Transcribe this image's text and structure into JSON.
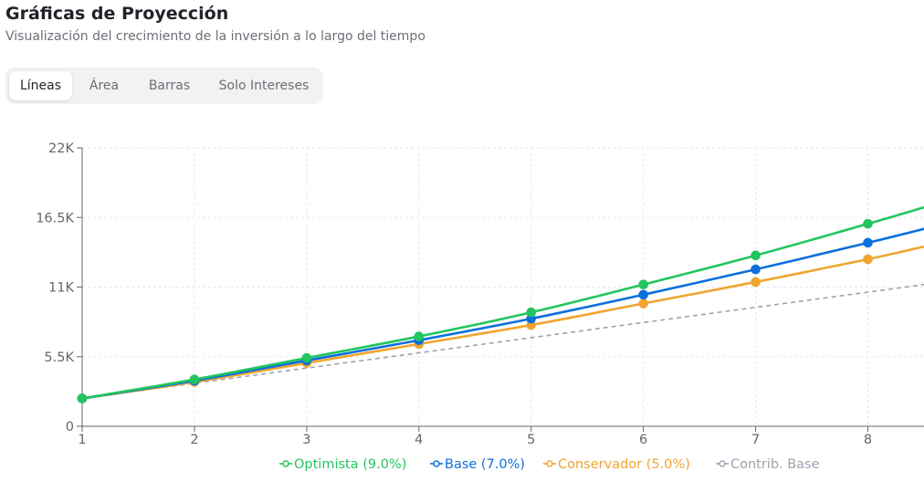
{
  "header": {
    "title": "Gráficas de Proyección",
    "subtitle": "Visualización del crecimiento de la inversión a lo largo del tiempo"
  },
  "tabs": [
    {
      "label": "Líneas",
      "active": true
    },
    {
      "label": "Área",
      "active": false
    },
    {
      "label": "Barras",
      "active": false
    },
    {
      "label": "Solo Intereses",
      "active": false
    }
  ],
  "chart_data": {
    "type": "line",
    "x": [
      1,
      2,
      3,
      4,
      5,
      6,
      7,
      8
    ],
    "xlim": [
      1,
      8.5
    ],
    "ylim": [
      0,
      22000
    ],
    "y_ticks": [
      0,
      5500,
      11000,
      16500,
      22000
    ],
    "y_tick_labels": [
      "0",
      "5.5K",
      "11K",
      "16.5K",
      "22K"
    ],
    "x_tick_labels": [
      "1",
      "2",
      "3",
      "4",
      "5",
      "6",
      "7",
      "8"
    ],
    "grid": true,
    "legend_position": "bottom",
    "series": [
      {
        "name": "Optimista (9.0%)",
        "color": "#22c55e",
        "style": "solid",
        "markers": true,
        "values": [
          2200,
          3700,
          5400,
          7100,
          9000,
          11200,
          13500,
          16000
        ],
        "value_at_xlim_end": 17300
      },
      {
        "name": "Base (7.0%)",
        "color": "#0b6fdc",
        "style": "solid",
        "markers": true,
        "values": [
          2200,
          3600,
          5200,
          6800,
          8500,
          10400,
          12400,
          14500
        ],
        "value_at_xlim_end": 15600
      },
      {
        "name": "Conservador (5.0%)",
        "color": "#f0a530",
        "style": "solid",
        "markers": true,
        "values": [
          2200,
          3500,
          5000,
          6500,
          8000,
          9700,
          11400,
          13200
        ],
        "value_at_xlim_end": 14200
      },
      {
        "name": "Contrib. Base",
        "color": "#9ca3af",
        "style": "dashed",
        "markers": false,
        "values": [
          2200,
          3400,
          4600,
          5800,
          7000,
          8200,
          9400,
          10600
        ],
        "value_at_xlim_end": 11200
      }
    ]
  }
}
